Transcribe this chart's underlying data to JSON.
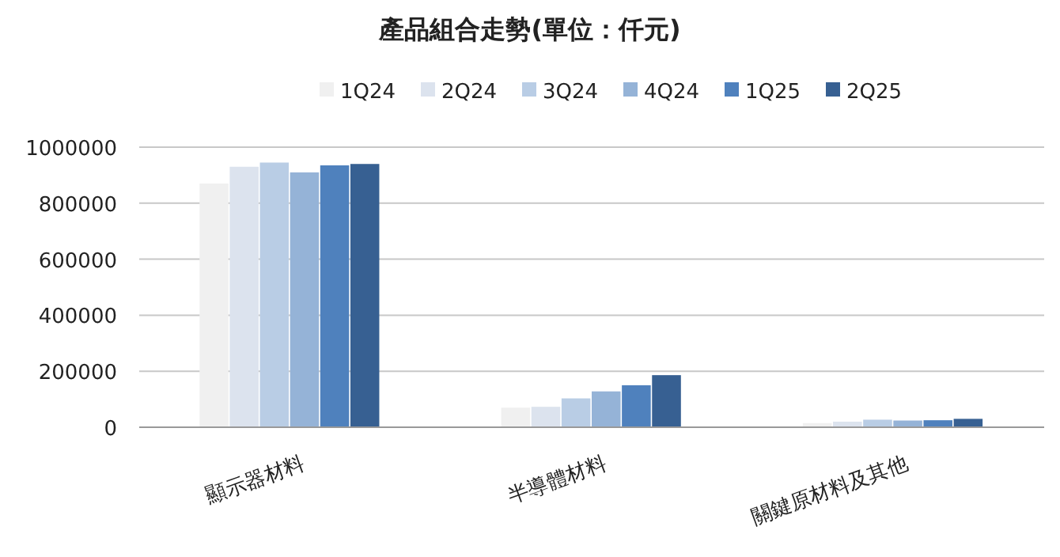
{
  "chart_data": {
    "type": "bar",
    "title": "產品組合走勢(單位：仟元)",
    "categories": [
      "顯示器材料",
      "半導體材料",
      "關鍵原材料及其他"
    ],
    "series": [
      {
        "name": "1Q24",
        "color": "#f0f0f0",
        "values": [
          870000,
          70000,
          15000
        ]
      },
      {
        "name": "2Q24",
        "color": "#dce3ee",
        "values": [
          930000,
          73000,
          20000
        ]
      },
      {
        "name": "3Q24",
        "color": "#b9cde5",
        "values": [
          945000,
          103000,
          27000
        ]
      },
      {
        "name": "4Q24",
        "color": "#95b3d7",
        "values": [
          910000,
          128000,
          24000
        ]
      },
      {
        "name": "1Q25",
        "color": "#4f81bd",
        "values": [
          935000,
          150000,
          25000
        ]
      },
      {
        "name": "2Q25",
        "color": "#376092",
        "values": [
          940000,
          186000,
          30000
        ]
      }
    ],
    "ylim": [
      0,
      1000000
    ],
    "yticks": [
      0,
      200000,
      400000,
      600000,
      800000,
      1000000
    ],
    "grid": "y",
    "legend": "top"
  }
}
